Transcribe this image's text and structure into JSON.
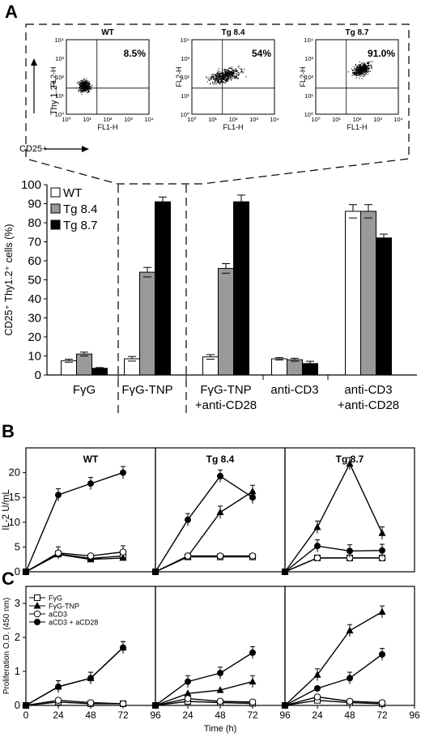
{
  "panels": {
    "A": "A",
    "B": "B",
    "C": "C"
  },
  "flow": {
    "plots": [
      {
        "title": "WT",
        "percent": "8.5%"
      },
      {
        "title": "Tg 8.4",
        "percent": "54%"
      },
      {
        "title": "Tg 8.7",
        "percent": "91.0%"
      }
    ],
    "x_axis_title": "FL1-H",
    "y_axis_title": "FL2-H",
    "x_ticks": [
      "10⁰",
      "10¹",
      "10²",
      "10³",
      "10⁴"
    ],
    "y_ticks": [
      "10⁰",
      "10¹",
      "10²",
      "10³",
      "10⁴"
    ],
    "side_label_y": "Thy 1.2+",
    "side_label_x": "CD25+"
  },
  "colors": {
    "wt": "#ffffff",
    "tg84": "#999999",
    "tg87": "#000000",
    "axis": "#000000"
  },
  "chart_data": [
    {
      "type": "bar",
      "ylabel": "CD25⁺ Thy1.2⁺ cells (%)",
      "ylim": [
        0,
        100
      ],
      "yticks": [
        0,
        10,
        20,
        30,
        40,
        50,
        60,
        70,
        80,
        90,
        100
      ],
      "categories": [
        {
          "label1": "FγG",
          "label2": ""
        },
        {
          "label1": "FγG-TNP",
          "label2": ""
        },
        {
          "label1": "FγG-TNP",
          "label2": "+anti-CD28"
        },
        {
          "label1": "anti-CD3",
          "label2": ""
        },
        {
          "label1": "anti-CD3",
          "label2": "+anti-CD28"
        }
      ],
      "legend_position": "top-left",
      "series": [
        {
          "name": "WT",
          "color": "#ffffff",
          "values": [
            7.5,
            8.5,
            9.5,
            8.5,
            86
          ],
          "errors": [
            0.8,
            1.2,
            1.2,
            0.6,
            3.5
          ]
        },
        {
          "name": "Tg 8.4",
          "color": "#999999",
          "values": [
            11,
            54,
            56,
            8,
            86
          ],
          "errors": [
            1.0,
            2.5,
            2.5,
            0.8,
            3.5
          ]
        },
        {
          "name": "Tg 8.7",
          "color": "#000000",
          "values": [
            3.5,
            91,
            91,
            6,
            72
          ],
          "errors": [
            0.4,
            2.5,
            3.5,
            1.2,
            2.0
          ]
        }
      ]
    },
    {
      "type": "line",
      "ylabel": "IL-2 U/mL",
      "ylim": [
        0,
        25
      ],
      "yticks": [
        0,
        5,
        10,
        15,
        20
      ],
      "x": [
        0,
        24,
        48,
        72
      ],
      "xlim": [
        0,
        96
      ],
      "panels": [
        {
          "title": "WT",
          "series": {
            "FgG": [
              0,
              3.6,
              2.7,
              3.2
            ],
            "FgG-TNP": [
              0,
              3.5,
              2.5,
              2.8
            ],
            "aCD3": [
              0,
              3.8,
              3.2,
              4.0
            ],
            "aCD3+aCD28": [
              0,
              15.5,
              17.8,
              20.0
            ]
          }
        },
        {
          "title": "Tg 8.4",
          "series": {
            "FgG": [
              0,
              3.0,
              3.0,
              3.0
            ],
            "FgG-TNP": [
              0,
              3.1,
              12.0,
              16.2
            ],
            "aCD3": [
              0,
              3.2,
              3.2,
              3.2
            ],
            "aCD3+aCD28": [
              0,
              10.5,
              19.3,
              15.0
            ]
          }
        },
        {
          "title": "Tg 8.7",
          "series": {
            "FgG": [
              0,
              2.8,
              2.8,
              2.8
            ],
            "FgG-TNP": [
              0,
              9.0,
              21.8,
              7.8
            ],
            "aCD3": [
              0,
              2.8,
              2.8,
              2.8
            ],
            "aCD3+aCD28": [
              0,
              5.2,
              4.2,
              4.3
            ]
          }
        }
      ]
    },
    {
      "type": "line",
      "ylabel": "Proliferation O.D. (450 nm)",
      "xlabel": "Time (h)",
      "ylim": [
        0,
        3.5
      ],
      "yticks": [
        0,
        1,
        2,
        3
      ],
      "x": [
        0,
        24,
        48,
        72
      ],
      "xlim": [
        0,
        96
      ],
      "xticks": [
        0,
        24,
        48,
        72,
        96
      ],
      "legend": [
        {
          "key": "FgG",
          "label": "FγG"
        },
        {
          "key": "FgG-TNP",
          "label": "FγG-TNP"
        },
        {
          "key": "aCD3",
          "label": "aCD3"
        },
        {
          "key": "aCD3+aCD28",
          "label": "aCD3 + aCD28"
        }
      ],
      "legend_position": "top-left",
      "panels": [
        {
          "series": {
            "FgG": [
              0,
              0.1,
              0.05,
              0.05
            ],
            "FgG-TNP": [
              0,
              0.55,
              0.8,
              1.7
            ],
            "aCD3": [
              0,
              0.15,
              0.08,
              0.05
            ],
            "aCD3+aCD28": [
              0,
              0.55,
              0.8,
              1.7
            ]
          }
        },
        {
          "series": {
            "FgG": [
              0,
              0.12,
              0.08,
              0.06
            ],
            "FgG-TNP": [
              0,
              0.35,
              0.45,
              0.7
            ],
            "aCD3": [
              0,
              0.2,
              0.12,
              0.1
            ],
            "aCD3+aCD28": [
              0,
              0.7,
              0.95,
              1.55
            ]
          }
        },
        {
          "series": {
            "FgG": [
              0,
              0.15,
              0.08,
              0.05
            ],
            "FgG-TNP": [
              0,
              0.9,
              2.2,
              2.75
            ],
            "aCD3": [
              0,
              0.25,
              0.12,
              0.08
            ],
            "aCD3+aCD28": [
              0,
              0.5,
              0.8,
              1.5
            ]
          }
        }
      ]
    }
  ]
}
